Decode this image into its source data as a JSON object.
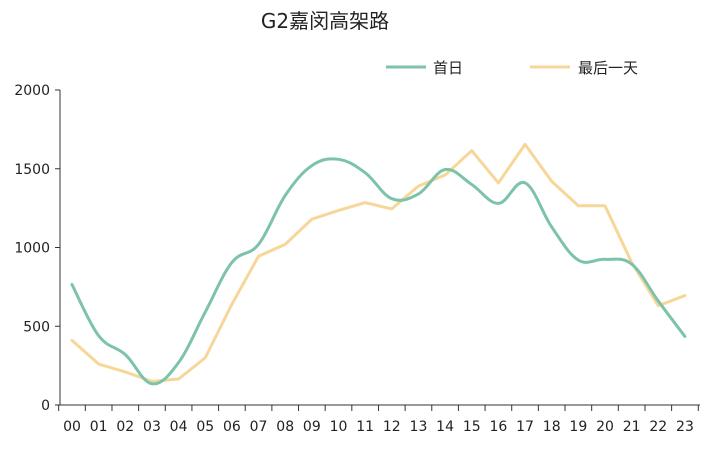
{
  "chart_data": {
    "type": "line",
    "title": "G2嘉闵高架路",
    "xlabel": "",
    "ylabel": "",
    "categories": [
      "00",
      "01",
      "02",
      "03",
      "04",
      "05",
      "06",
      "07",
      "08",
      "09",
      "10",
      "11",
      "12",
      "13",
      "14",
      "15",
      "16",
      "17",
      "18",
      "19",
      "20",
      "21",
      "22",
      "23"
    ],
    "ylim": [
      0,
      2000
    ],
    "yticks": [
      0,
      500,
      1000,
      1500,
      2000
    ],
    "grid": false,
    "legend_position": "top-right",
    "series": [
      {
        "name": "首日",
        "color": "#7cc3a9",
        "smooth": true,
        "values": [
          765,
          440,
          320,
          135,
          270,
          590,
          905,
          1020,
          1330,
          1520,
          1560,
          1475,
          1310,
          1340,
          1495,
          1400,
          1280,
          1410,
          1130,
          920,
          925,
          895,
          660,
          435
        ]
      },
      {
        "name": "最后一天",
        "color": "#f7d799",
        "smooth": false,
        "values": [
          410,
          260,
          210,
          150,
          165,
          300,
          640,
          945,
          1020,
          1180,
          1235,
          1285,
          1245,
          1390,
          1460,
          1615,
          1410,
          1655,
          1420,
          1265,
          1265,
          905,
          630,
          695
        ]
      }
    ]
  }
}
